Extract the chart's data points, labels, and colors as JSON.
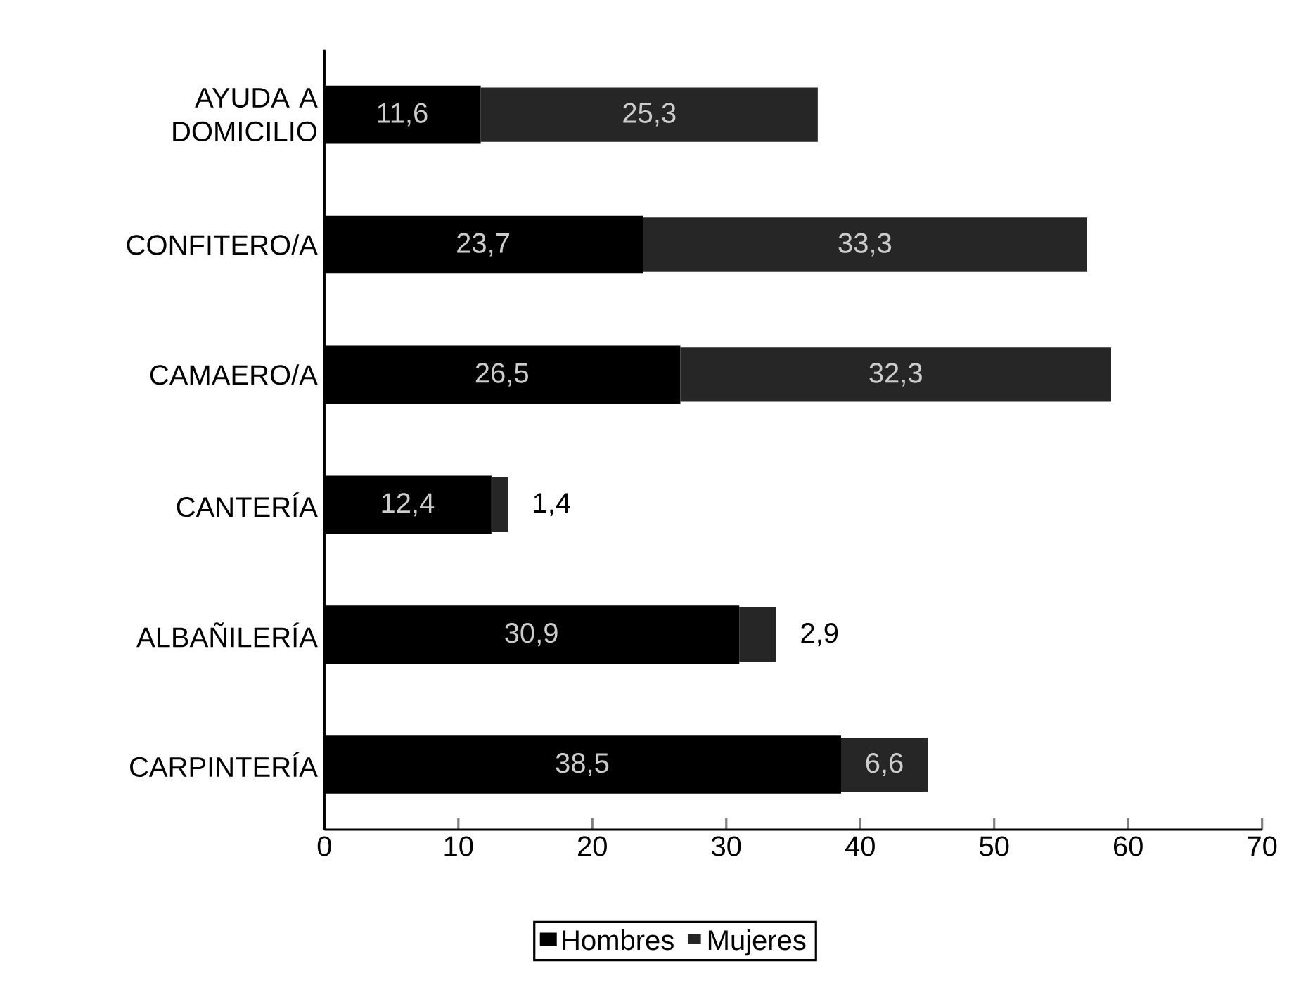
{
  "chart_data": {
    "type": "bar",
    "orientation": "horizontal",
    "stacked": true,
    "categories": [
      "AYUDA A DOMICILIO",
      "CONFITERO/A",
      "CAMAERO/A",
      "CANTERÍA",
      "ALBAÑILERÍA",
      "CARPINTERÍA"
    ],
    "series": [
      {
        "name": "Hombres",
        "color": "#000000",
        "values": [
          11.6,
          23.7,
          26.5,
          12.4,
          30.9,
          38.5
        ],
        "value_labels": [
          "11,6",
          "23,7",
          "26,5",
          "12,4",
          "30,9",
          "38,5"
        ]
      },
      {
        "name": "Mujeres",
        "color": "#262626",
        "values": [
          25.3,
          33.3,
          32.3,
          1.4,
          2.9,
          6.6
        ],
        "value_labels": [
          "25,3",
          "33,3",
          "32,3",
          "1,4",
          "2,9",
          "6,6"
        ]
      }
    ],
    "xlim": [
      0,
      70
    ],
    "xticks": [
      0,
      10,
      20,
      30,
      40,
      50,
      60,
      70
    ],
    "legend": "bottom"
  }
}
